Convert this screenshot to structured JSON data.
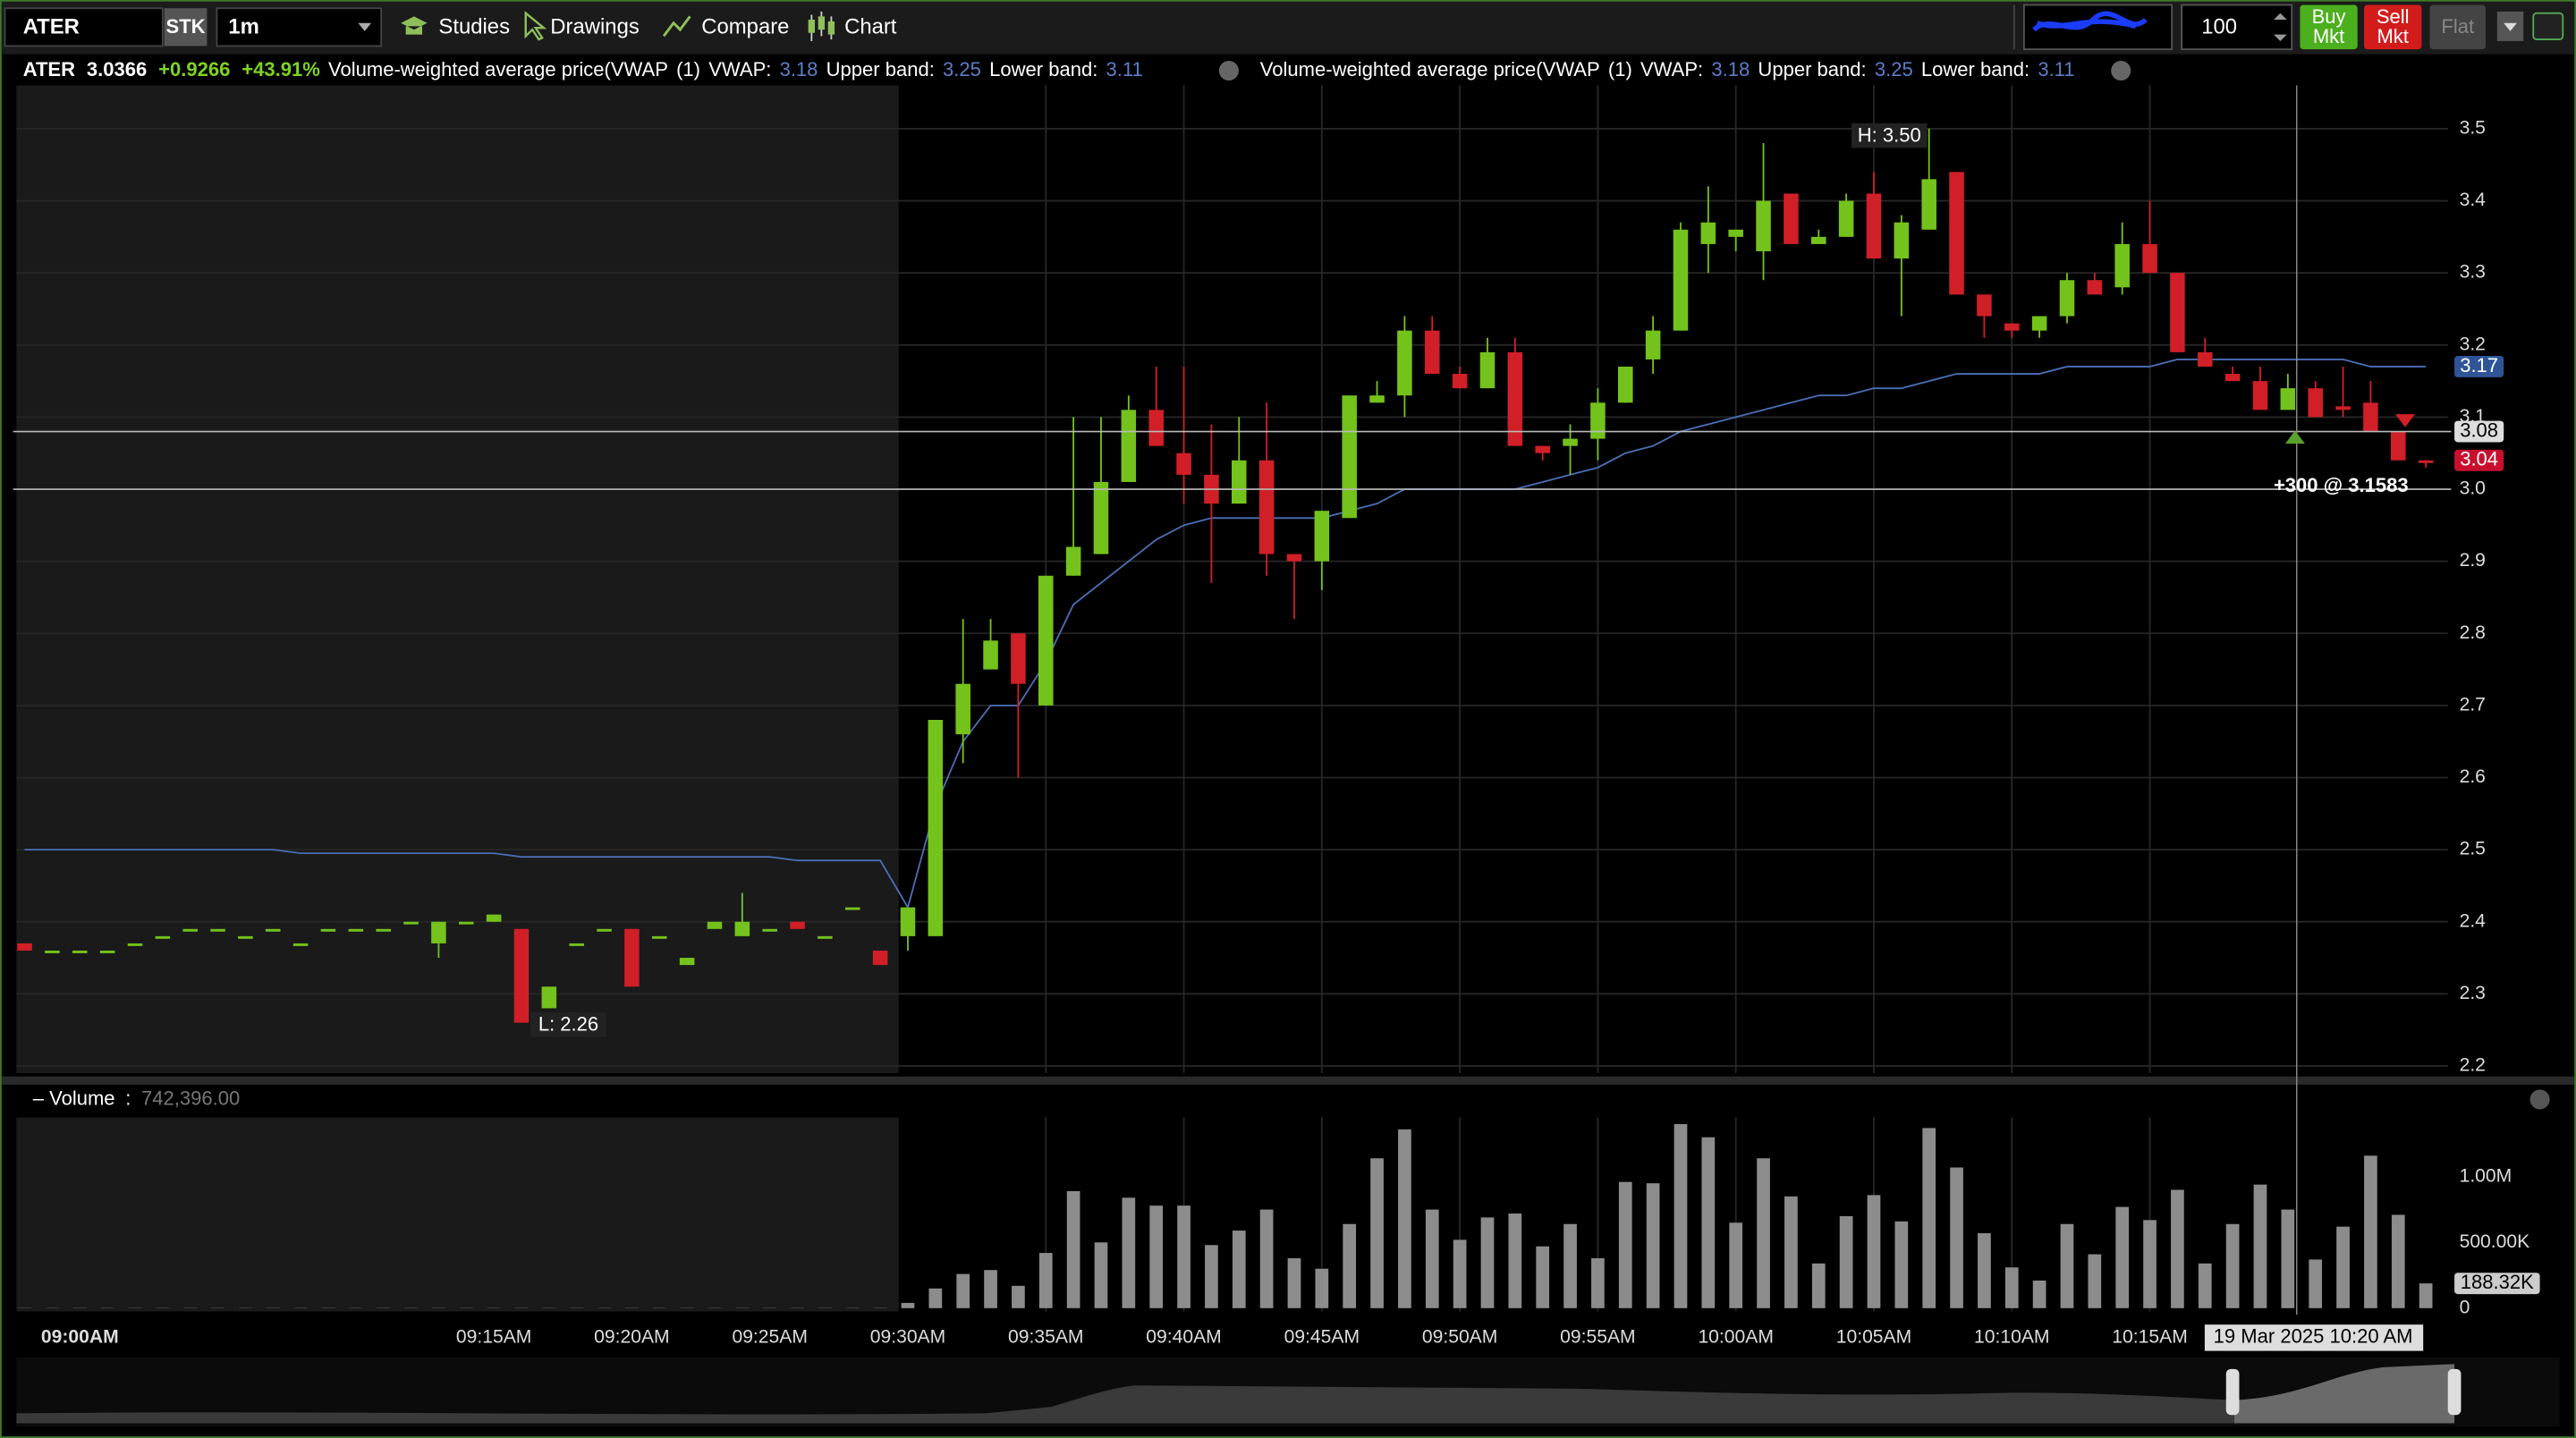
{
  "toolbar": {
    "symbol": "ATER",
    "sec_type": "STK",
    "interval": "1m",
    "studies": "Studies",
    "drawings": "Drawings",
    "compare": "Compare",
    "chart": "Chart",
    "quantity": "100",
    "buy": [
      "Buy",
      "Mkt"
    ],
    "sell": [
      "Sell",
      "Mkt"
    ],
    "flat": "Flat"
  },
  "header": {
    "symbol": "ATER",
    "last": "3.0366",
    "change": "+0.9266",
    "change_pct": "+43.91%",
    "studies": [
      {
        "name": "Volume-weighted average price(VWAP",
        "params": "(1)",
        "vwap_label": "VWAP:",
        "vwap": 3.18,
        "upper_label": "Upper band:",
        "upper": 3.25,
        "lower_label": "Lower band:",
        "lower": 3.11
      },
      {
        "name": "Volume-weighted average price(VWAP",
        "params": "(1)",
        "vwap_label": "VWAP:",
        "vwap": 3.18,
        "upper_label": "Upper band:",
        "upper": 3.25,
        "lower_label": "Lower band:",
        "lower": 3.11
      }
    ]
  },
  "crosshair_label": "19 Mar 2025 10:20 AM",
  "chart_data": [
    {
      "type": "candlestick",
      "open": [
        2.37,
        2.36,
        2.36,
        2.36,
        2.37,
        2.38,
        2.39,
        2.39,
        2.38,
        2.39,
        2.37,
        2.39,
        2.39,
        2.39,
        2.4,
        2.37,
        2.4,
        2.4,
        2.39,
        2.28,
        2.37,
        2.39,
        2.39,
        2.38,
        2.34,
        2.39,
        2.38,
        2.39,
        2.4,
        2.38,
        2.42,
        2.36,
        2.38,
        2.38,
        2.66,
        2.75,
        2.8,
        2.7,
        2.88,
        2.91,
        3.01,
        3.11,
        3.05,
        3.02,
        2.98,
        3.04,
        2.91,
        2.9,
        2.96,
        3.12,
        3.13,
        3.22,
        3.16,
        3.14,
        3.19,
        3.06,
        3.06,
        3.07,
        3.12,
        3.18,
        3.22,
        3.34,
        3.35,
        3.33,
        3.41,
        3.34,
        3.35,
        3.41,
        3.32,
        3.36,
        3.44,
        3.27,
        3.23,
        3.22,
        3.24,
        3.29,
        3.28,
        3.34,
        3.3,
        3.19,
        3.16,
        3.15,
        3.11,
        3.14,
        3.115,
        3.12,
        3.08,
        3.04
      ],
      "high": [
        2.37,
        2.36,
        2.36,
        2.36,
        2.37,
        2.38,
        2.39,
        2.39,
        2.38,
        2.39,
        2.37,
        2.39,
        2.39,
        2.39,
        2.4,
        2.4,
        2.4,
        2.41,
        2.39,
        2.31,
        2.37,
        2.39,
        2.39,
        2.38,
        2.35,
        2.4,
        2.44,
        2.39,
        2.4,
        2.38,
        2.42,
        2.36,
        2.42,
        2.68,
        2.82,
        2.82,
        2.8,
        2.88,
        3.1,
        3.1,
        3.13,
        3.17,
        3.17,
        3.09,
        3.1,
        3.12,
        2.91,
        2.97,
        3.13,
        3.15,
        3.24,
        3.24,
        3.17,
        3.21,
        3.21,
        3.06,
        3.09,
        3.14,
        3.17,
        3.24,
        3.37,
        3.42,
        3.36,
        3.48,
        3.41,
        3.36,
        3.41,
        3.44,
        3.38,
        3.5,
        3.44,
        3.27,
        3.23,
        3.24,
        3.3,
        3.3,
        3.37,
        3.4,
        3.3,
        3.21,
        3.17,
        3.17,
        3.16,
        3.15,
        3.17,
        3.15,
        3.08,
        3.04
      ],
      "low": [
        2.36,
        2.36,
        2.36,
        2.36,
        2.37,
        2.38,
        2.39,
        2.39,
        2.38,
        2.39,
        2.37,
        2.39,
        2.39,
        2.39,
        2.4,
        2.35,
        2.4,
        2.4,
        2.26,
        2.28,
        2.37,
        2.39,
        2.31,
        2.38,
        2.34,
        2.39,
        2.38,
        2.39,
        2.39,
        2.38,
        2.42,
        2.34,
        2.36,
        2.38,
        2.62,
        2.75,
        2.6,
        2.7,
        2.88,
        2.91,
        3.01,
        3.06,
        2.98,
        2.87,
        2.98,
        2.88,
        2.82,
        2.86,
        2.96,
        3.12,
        3.1,
        3.16,
        3.14,
        3.14,
        3.06,
        3.04,
        3.02,
        3.04,
        3.12,
        3.16,
        3.22,
        3.3,
        3.33,
        3.29,
        3.34,
        3.34,
        3.35,
        3.32,
        3.24,
        3.36,
        3.27,
        3.21,
        3.21,
        3.21,
        3.23,
        3.27,
        3.27,
        3.3,
        3.19,
        3.17,
        3.15,
        3.11,
        3.11,
        3.1,
        3.1,
        3.08,
        3.04,
        3.03
      ],
      "close": [
        2.36,
        2.36,
        2.36,
        2.36,
        2.37,
        2.38,
        2.39,
        2.39,
        2.38,
        2.39,
        2.37,
        2.39,
        2.39,
        2.39,
        2.4,
        2.4,
        2.4,
        2.41,
        2.26,
        2.31,
        2.37,
        2.39,
        2.31,
        2.38,
        2.35,
        2.4,
        2.4,
        2.39,
        2.39,
        2.38,
        2.42,
        2.34,
        2.42,
        2.68,
        2.73,
        2.79,
        2.73,
        2.88,
        2.92,
        3.01,
        3.11,
        3.06,
        3.02,
        2.98,
        3.04,
        2.91,
        2.9,
        2.97,
        3.13,
        3.13,
        3.22,
        3.16,
        3.14,
        3.19,
        3.06,
        3.05,
        3.07,
        3.12,
        3.17,
        3.22,
        3.36,
        3.37,
        3.36,
        3.4,
        3.34,
        3.35,
        3.4,
        3.32,
        3.37,
        3.43,
        3.27,
        3.24,
        3.22,
        3.24,
        3.29,
        3.27,
        3.34,
        3.3,
        3.19,
        3.17,
        3.15,
        3.11,
        3.14,
        3.1,
        3.11,
        3.08,
        3.04,
        3.0366
      ],
      "vwap": {
        "color": "#4a6fb5",
        "values": [
          2.5,
          2.5,
          2.5,
          2.5,
          2.5,
          2.5,
          2.5,
          2.5,
          2.5,
          2.5,
          2.495,
          2.495,
          2.495,
          2.495,
          2.495,
          2.495,
          2.495,
          2.495,
          2.49,
          2.49,
          2.49,
          2.49,
          2.49,
          2.49,
          2.49,
          2.49,
          2.49,
          2.49,
          2.485,
          2.485,
          2.485,
          2.485,
          2.42,
          2.56,
          2.65,
          2.7,
          2.7,
          2.76,
          2.84,
          2.87,
          2.9,
          2.93,
          2.95,
          2.96,
          2.96,
          2.96,
          2.96,
          2.96,
          2.97,
          2.98,
          3.0,
          3.0,
          3.0,
          3.0,
          3.0,
          3.01,
          3.02,
          3.03,
          3.05,
          3.06,
          3.08,
          3.09,
          3.1,
          3.11,
          3.12,
          3.13,
          3.13,
          3.14,
          3.14,
          3.15,
          3.16,
          3.16,
          3.16,
          3.16,
          3.17,
          3.17,
          3.17,
          3.17,
          3.18,
          3.18,
          3.18,
          3.18,
          3.18,
          3.18,
          3.18,
          3.17,
          3.17,
          3.17
        ]
      },
      "up_color": "#74c21c",
      "down_color": "#d01f27",
      "ylim": [
        2.19,
        3.56
      ],
      "yticks": [
        2.2,
        2.3,
        2.4,
        2.5,
        2.6,
        2.7,
        2.8,
        2.9,
        {
          "value": 3,
          "label": "3.0"
        },
        3.1,
        3.2,
        3.3,
        3.4,
        3.5
      ],
      "xticks": [
        {
          "value": 2,
          "label": "09:00AM"
        },
        {
          "value": 17,
          "label": "09:15AM"
        },
        {
          "value": 22,
          "label": "09:20AM"
        },
        {
          "value": 27,
          "label": "09:25AM"
        },
        {
          "value": 32,
          "label": "09:30AM"
        },
        {
          "value": 37,
          "label": "09:35AM"
        },
        {
          "value": 42,
          "label": "09:40AM"
        },
        {
          "value": 47,
          "label": "09:45AM"
        },
        {
          "value": 52,
          "label": "09:50AM"
        },
        {
          "value": 57,
          "label": "09:55AM"
        },
        {
          "value": 62,
          "label": "10:00AM"
        },
        {
          "value": 67,
          "label": "10:05AM"
        },
        {
          "value": 72,
          "label": "10:10AM"
        },
        {
          "value": 77,
          "label": "10:15AM"
        }
      ],
      "grid": true,
      "high_label": "H: 3.50",
      "low_label": "L: 2.26",
      "hlines": [
        3.08,
        3
      ],
      "trade_label": "+300 @ 3.1583",
      "price_tags": [
        {
          "value": 3.17,
          "color": "#2f5597",
          "text_color": "#ffffff"
        },
        {
          "value": 3.08,
          "color": "#dddddd",
          "text_color": "#000000"
        },
        {
          "value": 3.04,
          "color": "#c8102e",
          "text_color": "#ffffff"
        }
      ]
    },
    {
      "type": "bar",
      "title": "Volume",
      "separator": ":",
      "total": "742,396.00",
      "color": "#8c8c8c",
      "values": [
        5000,
        5000,
        5000,
        5000,
        5000,
        5000,
        5000,
        5000,
        5000,
        5000,
        5000,
        5000,
        5000,
        5000,
        5000,
        5000,
        5000,
        5000,
        5000,
        5000,
        5000,
        5000,
        5000,
        5000,
        5000,
        5000,
        5000,
        5000,
        5000,
        5000,
        5000,
        5000,
        40000,
        150000,
        260000,
        290000,
        170000,
        420000,
        890000,
        500000,
        840000,
        780000,
        780000,
        480000,
        590000,
        750000,
        380000,
        300000,
        640000,
        1140000,
        1360000,
        750000,
        520000,
        690000,
        720000,
        470000,
        640000,
        380000,
        960000,
        950000,
        1400000,
        1300000,
        650000,
        1140000,
        850000,
        340000,
        700000,
        860000,
        660000,
        1370000,
        1070000,
        570000,
        310000,
        210000,
        640000,
        410000,
        770000,
        670000,
        900000,
        340000,
        640000,
        940000,
        750000,
        370000,
        620000,
        1160000,
        710000,
        188320
      ],
      "ylim": [
        0,
        1450000
      ],
      "yticks": [
        0,
        {
          "value": 500000,
          "label": "500.00K"
        },
        {
          "value": 1000000,
          "label": "1.00M"
        }
      ],
      "value_tag": {
        "value": 188320,
        "label": "188.32K"
      }
    }
  ]
}
